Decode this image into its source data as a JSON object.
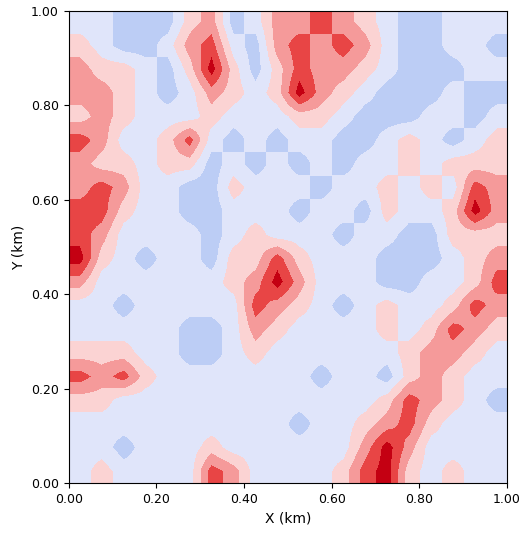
{
  "chart_data": {
    "type": "heatmap",
    "x_label": "X (km)",
    "y_label": "Y (km)",
    "xlim": [
      0,
      1
    ],
    "ylim": [
      0,
      1
    ],
    "xticks": [
      {
        "value": 0,
        "label": "0.00"
      },
      {
        "value": 0.2,
        "label": "0.20"
      },
      {
        "value": 0.4,
        "label": "0.40"
      },
      {
        "value": 0.6,
        "label": "0.60"
      },
      {
        "value": 0.8,
        "label": "0.80"
      },
      {
        "value": 1,
        "label": "1.00"
      }
    ],
    "yticks": [
      {
        "value": 0,
        "label": "0.00"
      },
      {
        "value": 0.2,
        "label": "0.20"
      },
      {
        "value": 0.4,
        "label": "0.40"
      },
      {
        "value": 0.6,
        "label": "0.60"
      },
      {
        "value": 0.8,
        "label": "0.80"
      },
      {
        "value": 1,
        "label": "1.00"
      }
    ],
    "cells": [
      [
        0,
        0,
        -1,
        -1,
        -1,
        1,
        2,
        -1,
        0,
        2,
        2,
        3,
        2,
        1,
        0,
        -1,
        -1,
        0,
        0,
        0
      ],
      [
        1,
        0,
        -1,
        -1,
        0,
        2,
        3,
        0,
        -1,
        2,
        3,
        2,
        3,
        2,
        0,
        -1,
        -1,
        0,
        0,
        -1
      ],
      [
        2,
        1,
        1,
        0,
        -1,
        1,
        4,
        1,
        -1,
        1,
        3,
        2,
        2,
        1,
        0,
        -1,
        -1,
        -1,
        0,
        0
      ],
      [
        2,
        2,
        1,
        0,
        -1,
        0,
        2,
        1,
        0,
        1,
        4,
        2,
        1,
        0,
        -1,
        -1,
        -1,
        0,
        -1,
        -1
      ],
      [
        1,
        2,
        1,
        0,
        0,
        0,
        1,
        0,
        0,
        0,
        1,
        1,
        0,
        -1,
        -1,
        -1,
        0,
        0,
        -1,
        0
      ],
      [
        3,
        2,
        0,
        0,
        1,
        3,
        0,
        -1,
        0,
        -1,
        0,
        0,
        -1,
        -1,
        0,
        1,
        0,
        -1,
        0,
        1
      ],
      [
        2,
        1,
        1,
        0,
        1,
        1,
        -1,
        0,
        -1,
        0,
        -1,
        0,
        -1,
        0,
        0,
        1,
        0,
        1,
        1,
        1
      ],
      [
        2,
        3,
        2,
        0,
        0,
        -1,
        -1,
        1,
        0,
        0,
        0,
        -1,
        0,
        0,
        1,
        0,
        1,
        0,
        3,
        2
      ],
      [
        3,
        3,
        1,
        0,
        0,
        -1,
        -1,
        0,
        0,
        0,
        -1,
        0,
        0,
        -1,
        1,
        0,
        0,
        1,
        4,
        2
      ],
      [
        3,
        2,
        0,
        0,
        0,
        0,
        -1,
        0,
        1,
        0,
        0,
        0,
        -1,
        0,
        0,
        -1,
        -1,
        1,
        1,
        1
      ],
      [
        4,
        1,
        0,
        -1,
        0,
        0,
        -1,
        1,
        1,
        3,
        1,
        0,
        0,
        0,
        -1,
        -1,
        -1,
        0,
        1,
        2
      ],
      [
        2,
        0,
        0,
        0,
        0,
        0,
        0,
        1,
        2,
        4,
        2,
        0,
        0,
        0,
        -1,
        -1,
        0,
        0,
        1,
        3
      ],
      [
        0,
        0,
        -1,
        0,
        0,
        0,
        0,
        0,
        3,
        2,
        1,
        0,
        -1,
        0,
        1,
        0,
        0,
        1,
        3,
        2
      ],
      [
        0,
        0,
        0,
        0,
        0,
        -1,
        -1,
        0,
        2,
        1,
        0,
        0,
        0,
        0,
        1,
        0,
        1,
        3,
        2,
        1
      ],
      [
        1,
        1,
        1,
        0,
        0,
        -1,
        -1,
        0,
        1,
        0,
        0,
        0,
        0,
        0,
        0,
        1,
        2,
        2,
        1,
        0
      ],
      [
        3,
        2,
        3,
        1,
        0,
        0,
        0,
        0,
        0,
        0,
        0,
        -1,
        0,
        0,
        -1,
        1,
        2,
        1,
        0,
        0
      ],
      [
        1,
        1,
        0,
        0,
        0,
        0,
        0,
        0,
        0,
        0,
        0,
        0,
        0,
        0,
        1,
        3,
        2,
        1,
        0,
        -1
      ],
      [
        0,
        0,
        0,
        0,
        0,
        0,
        0,
        0,
        0,
        0,
        -1,
        0,
        0,
        1,
        2,
        3,
        1,
        0,
        0,
        0
      ],
      [
        0,
        0,
        -1,
        0,
        0,
        0,
        1,
        0,
        0,
        0,
        0,
        0,
        0,
        2,
        4,
        2,
        0,
        0,
        0,
        0
      ],
      [
        0,
        1,
        0,
        0,
        0,
        0,
        3,
        2,
        0,
        0,
        0,
        0,
        1,
        3,
        4,
        1,
        0,
        1,
        0,
        0
      ]
    ]
  }
}
